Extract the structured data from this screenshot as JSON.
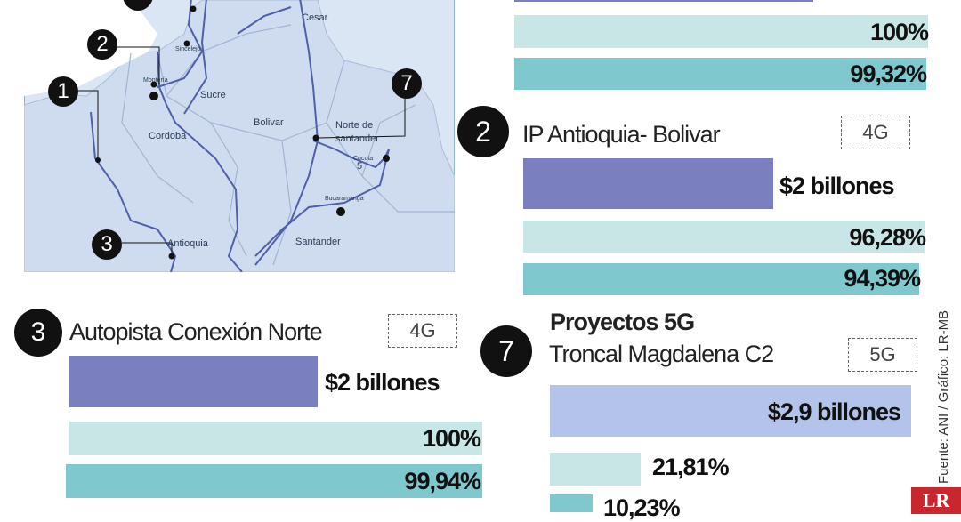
{
  "map": {
    "labels": {
      "cesar": "Cesar",
      "sucre": "Sucre",
      "bolivar": "Bolivar",
      "cordoba": "Cordoba",
      "norte_de_santander_1": "Norte de",
      "norte_de_santander_2": "santander",
      "antioquia": "Antioquia",
      "santander": "Santander",
      "sincelejo": "Sincelejo",
      "monteria": "Montería",
      "cucuta": "Cucuta",
      "bucaramanga": "Bucaramanga",
      "cucuta_num": "5"
    },
    "markers": [
      "1",
      "2",
      "3",
      "7"
    ]
  },
  "top_partial": {
    "bar2_value": "100%",
    "bar3_value": "99,32%"
  },
  "project_2": {
    "number": "2",
    "title": "IP Antioquia- Bolivar",
    "badge": "4G",
    "investment": "$2 billones",
    "progress_1": "96,28%",
    "progress_2": "94,39%",
    "progress_1_fraction": 0.9628,
    "progress_2_fraction": 0.9439
  },
  "project_3": {
    "number": "3",
    "title": "Autopista Conexión Norte",
    "badge": "4G",
    "investment": "$2 billones",
    "progress_1": "100%",
    "progress_2": "99,94%",
    "progress_1_fraction": 1.0,
    "progress_2_fraction": 0.9994
  },
  "project_7": {
    "number": "7",
    "heading": "Proyectos 5G",
    "title": "Troncal Magdalena C2",
    "badge": "5G",
    "investment": "$2,9 billones",
    "progress_1": "21,81%",
    "progress_2": "10,23%",
    "progress_1_fraction": 0.2181,
    "progress_2_fraction": 0.1023
  },
  "source": "Fuente: ANI / Gráfico: LR-MB",
  "logo": "LR",
  "colors": {
    "investment_bar": "#7a7fbf",
    "investment_bar_5g": "#b4c3ea",
    "progress_light": "#c9e6e6",
    "progress_teal": "#7fc8cd",
    "map_fill": "#cfdcef",
    "road": "#4f5fa8"
  }
}
